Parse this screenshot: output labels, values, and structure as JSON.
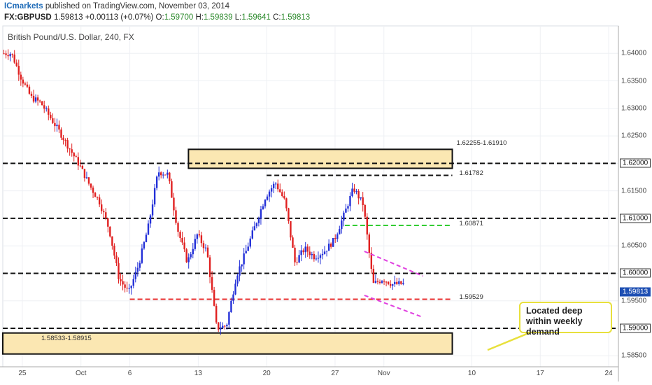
{
  "header": {
    "brand": "ICmarkets",
    "published_text": " published on TradingView.com, November 03, 2014",
    "symbol": "FX:GBPUSD",
    "last": "1.59813",
    "change": "+0.00113 (+0.07%)",
    "open_label": "O:",
    "open": "1.59700",
    "high_label": "H:",
    "high": "1.59839",
    "low_label": "L:",
    "low": "1.59641",
    "close_label": "C:",
    "close": "1.59813"
  },
  "chart_data": {
    "type": "candlestick",
    "title": "British Pound/U.S. Dollar, 240, FX",
    "xlim": [
      "2014-09-23",
      "2014-11-25"
    ],
    "ylim": [
      1.583,
      1.645
    ],
    "y_ticks": [
      "1.64000",
      "1.63500",
      "1.63000",
      "1.62500",
      "1.62000",
      "1.61500",
      "1.61000",
      "1.60500",
      "1.60000",
      "1.59500",
      "1.59000",
      "1.58500"
    ],
    "y_ticks_boxed": [
      "1.62000",
      "1.61000",
      "1.60000",
      "1.59000"
    ],
    "current_price": "1.59813",
    "current_value": 1.59813,
    "x_ticks": [
      {
        "label": "25",
        "date": "2014-09-25"
      },
      {
        "label": "Oct",
        "date": "2014-10-01"
      },
      {
        "label": "6",
        "date": "2014-10-06"
      },
      {
        "label": "13",
        "date": "2014-10-13"
      },
      {
        "label": "20",
        "date": "2014-10-20"
      },
      {
        "label": "27",
        "date": "2014-10-27"
      },
      {
        "label": "Nov",
        "date": "2014-11-01"
      },
      {
        "label": "10",
        "date": "2014-11-10"
      },
      {
        "label": "17",
        "date": "2014-11-17"
      },
      {
        "label": "24",
        "date": "2014-11-24"
      }
    ],
    "price_path": [
      [
        "2014-09-23",
        1.64
      ],
      [
        "2014-09-24",
        1.64
      ],
      [
        "2014-09-25",
        1.6355
      ],
      [
        "2014-09-26",
        1.632
      ],
      [
        "2014-09-27",
        1.631
      ],
      [
        "2014-09-29",
        1.6255
      ],
      [
        "2014-09-30",
        1.6225
      ],
      [
        "2014-10-01",
        1.6195
      ],
      [
        "2014-10-02",
        1.616
      ],
      [
        "2014-10-03",
        1.613
      ],
      [
        "2014-10-04",
        1.608
      ],
      [
        "2014-10-05",
        1.599
      ],
      [
        "2014-10-06",
        1.5965
      ],
      [
        "2014-10-07",
        1.6015
      ],
      [
        "2014-10-08",
        1.6085
      ],
      [
        "2014-10-09",
        1.6185
      ],
      [
        "2014-10-10",
        1.618
      ],
      [
        "2014-10-11",
        1.608
      ],
      [
        "2014-10-12",
        1.602
      ],
      [
        "2014-10-13",
        1.607
      ],
      [
        "2014-10-14",
        1.604
      ],
      [
        "2014-10-15",
        1.59
      ],
      [
        "2014-10-16",
        1.5905
      ],
      [
        "2014-10-17",
        1.5995
      ],
      [
        "2014-10-18",
        1.604
      ],
      [
        "2014-10-19",
        1.609
      ],
      [
        "2014-10-20",
        1.614
      ],
      [
        "2014-10-21",
        1.6165
      ],
      [
        "2014-10-22",
        1.613
      ],
      [
        "2014-10-23",
        1.602
      ],
      [
        "2014-10-24",
        1.6045
      ],
      [
        "2014-10-25",
        1.603
      ],
      [
        "2014-10-26",
        1.604
      ],
      [
        "2014-10-27",
        1.606
      ],
      [
        "2014-10-28",
        1.6105
      ],
      [
        "2014-10-29",
        1.6155
      ],
      [
        "2014-10-30",
        1.6125
      ],
      [
        "2014-10-31",
        1.598
      ],
      [
        "2014-11-01",
        1.599
      ],
      [
        "2014-11-02",
        1.598
      ],
      [
        "2014-11-03",
        1.5981
      ]
    ],
    "horizontal_levels": [
      {
        "value": 1.62,
        "style": "dashed",
        "color": "#111111",
        "from": "2014-09-23",
        "to": "2014-11-25"
      },
      {
        "value": 1.61,
        "style": "dashed",
        "color": "#111111",
        "from": "2014-09-23",
        "to": "2014-11-25"
      },
      {
        "value": 1.6,
        "style": "dashed",
        "color": "#111111",
        "from": "2014-09-23",
        "to": "2014-11-25"
      },
      {
        "value": 1.59,
        "style": "dashed",
        "color": "#111111",
        "from": "2014-09-23",
        "to": "2014-11-25"
      },
      {
        "value": 1.61782,
        "label": "1.61782",
        "style": "dashed",
        "color": "#111111",
        "from": "2014-10-20",
        "to": "2014-11-08"
      },
      {
        "value": 1.60871,
        "label": "1.60871",
        "style": "dashed",
        "color": "#33cc33",
        "from": "2014-10-28",
        "to": "2014-11-08"
      },
      {
        "value": 1.59529,
        "label": "1.59529",
        "style": "dashed",
        "color": "#e83030",
        "from": "2014-10-06",
        "to": "2014-11-08"
      }
    ],
    "zones": [
      {
        "label": "1.62255-1.61910",
        "from": "2014-10-12",
        "to": "2014-11-08",
        "y_top": 1.62255,
        "y_bottom": 1.6191,
        "fill": "#fbe7b2",
        "stroke": "#111111"
      },
      {
        "label": "1.58533-1.58915",
        "from": "2014-09-23",
        "to": "2014-11-08",
        "y_top": 1.58915,
        "y_bottom": 1.58533,
        "fill": "#fbe7b2",
        "stroke": "#111111"
      }
    ],
    "channel_lines": [
      {
        "from": [
          "2014-10-30",
          1.604
        ],
        "to": [
          "2014-11-05",
          1.5995
        ],
        "color": "#e040e0"
      },
      {
        "from": [
          "2014-10-30",
          1.596
        ],
        "to": [
          "2014-11-05",
          1.592
        ],
        "color": "#e040e0"
      }
    ],
    "annotation": {
      "text": "Located deep within weekly demand"
    },
    "colors": {
      "up": "#2330d8",
      "down": "#e02020",
      "grid": "#eef0f4",
      "axis": "#aaaaaa"
    }
  }
}
